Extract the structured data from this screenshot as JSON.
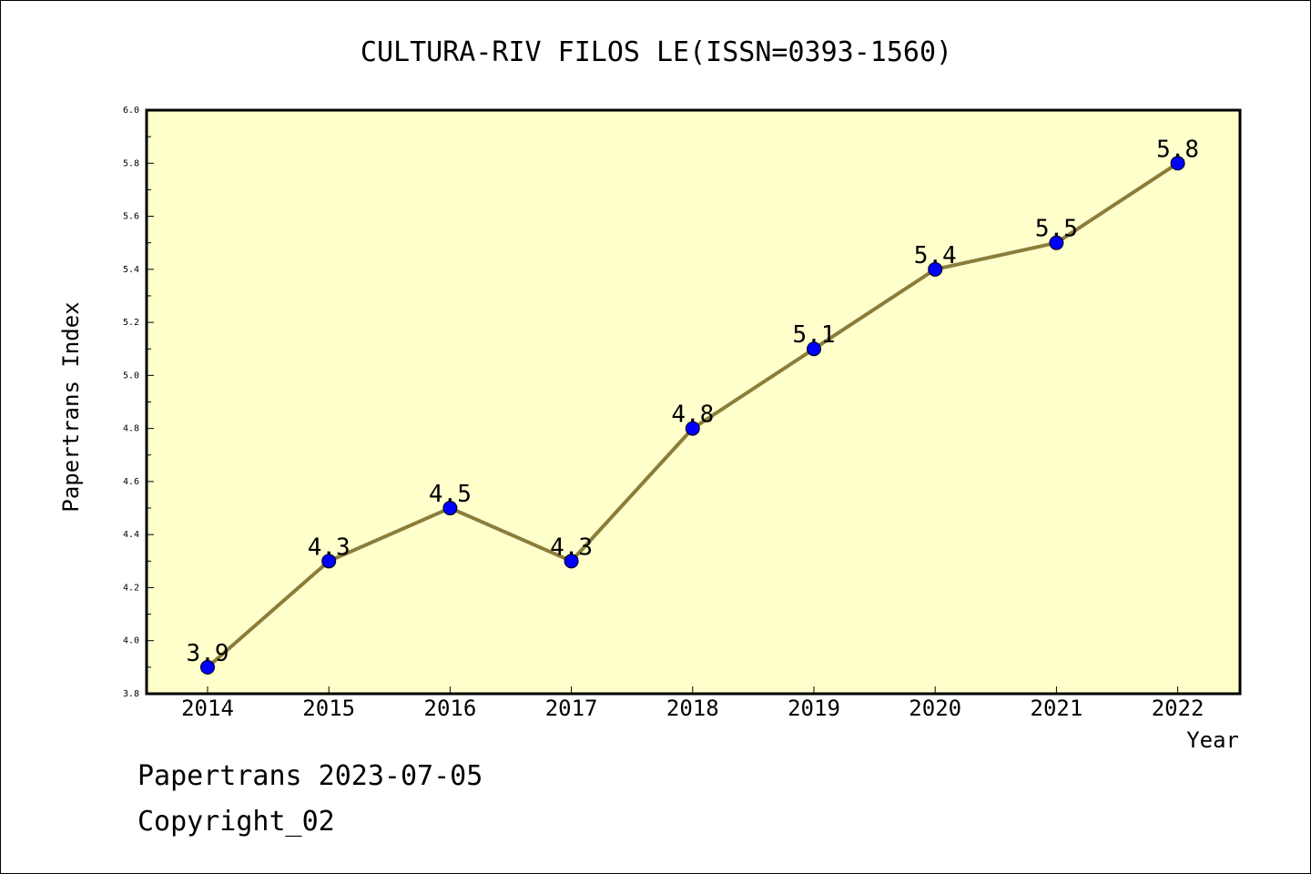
{
  "chart_data": {
    "type": "line",
    "title": "CULTURA-RIV FILOS LE(ISSN=0393-1560)",
    "xlabel": "Year",
    "ylabel": "Papertrans Index",
    "x": [
      "2014",
      "2015",
      "2016",
      "2017",
      "2018",
      "2019",
      "2020",
      "2021",
      "2022"
    ],
    "values": [
      3.9,
      4.3,
      4.5,
      4.3,
      4.8,
      5.1,
      5.4,
      5.5,
      5.8
    ],
    "data_labels": [
      "3.9",
      "4.3",
      "4.5",
      "4.3",
      "4.8",
      "5.1",
      "5.4",
      "5.5",
      "5.8"
    ],
    "ylim": [
      3.8,
      6.0
    ],
    "yticks": [
      "3.8",
      "4.0",
      "4.2",
      "4.4",
      "4.6",
      "4.8",
      "5.0",
      "5.2",
      "5.4",
      "5.6",
      "5.8",
      "6.0"
    ],
    "grid": false,
    "legend": "none",
    "colors": {
      "plot_background": "#ffffcc",
      "line": "#8b7d3a",
      "marker": "#0000ff"
    }
  },
  "footer": {
    "line1": "Papertrans 2023-07-05",
    "line2": "Copyright_02"
  }
}
